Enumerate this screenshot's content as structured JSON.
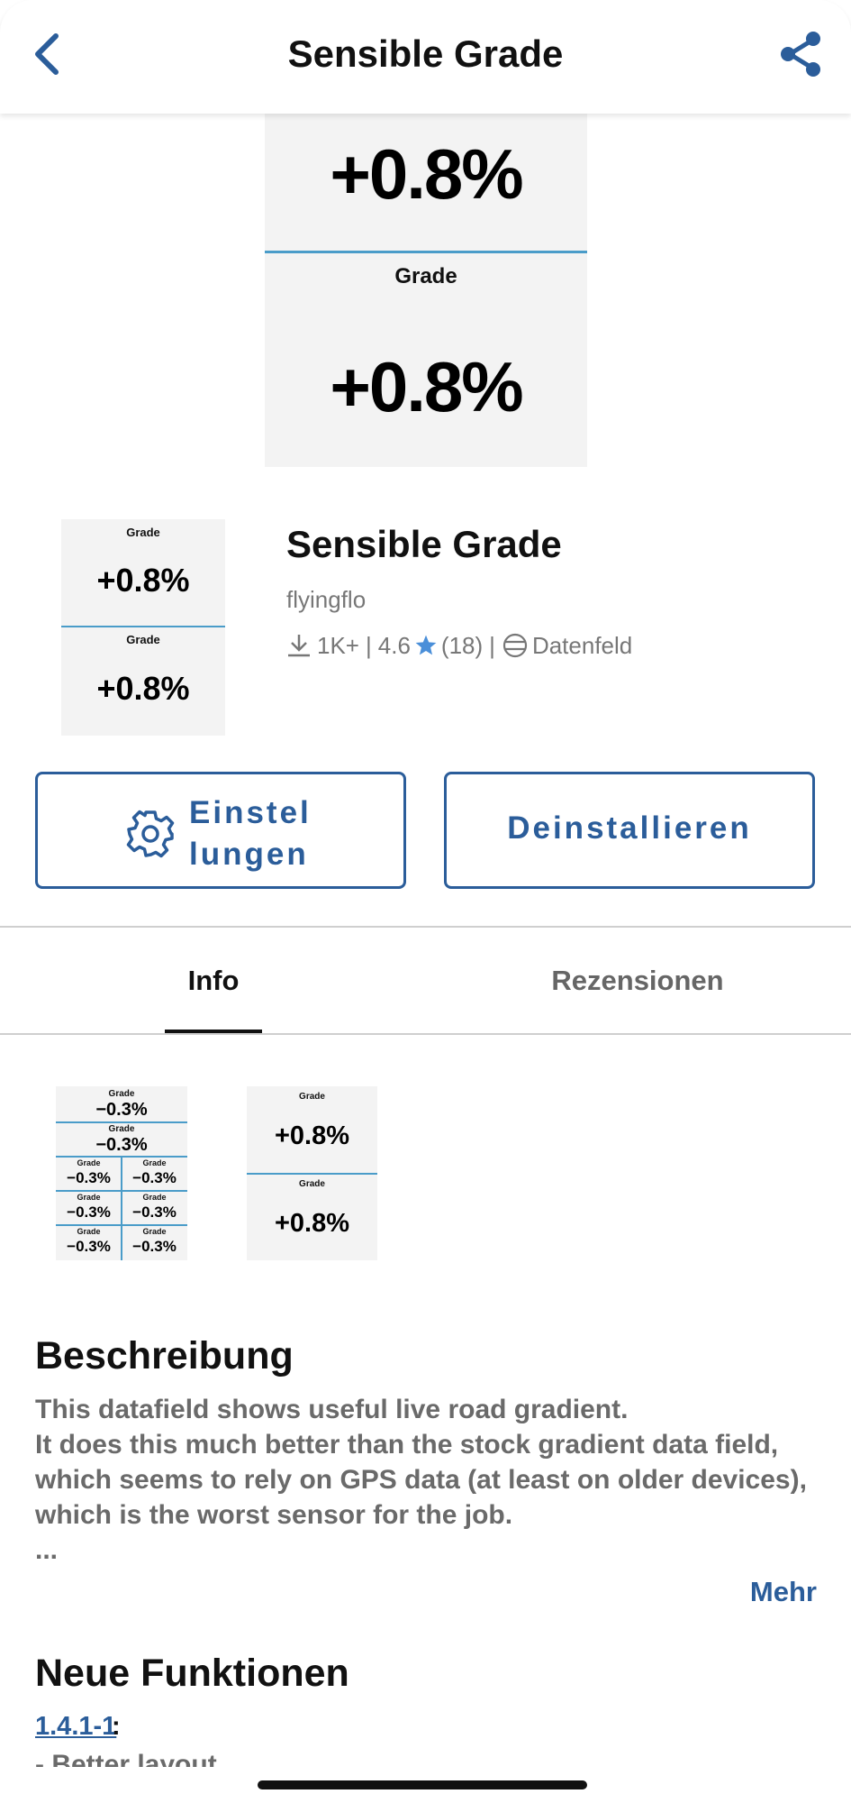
{
  "header": {
    "title": "Sensible Grade"
  },
  "hero_tile": {
    "value_top": "+0.8%",
    "label": "Grade",
    "value_bottom": "+0.8%"
  },
  "app_icon": {
    "label_top": "Grade",
    "value_top": "+0.8%",
    "label_bottom": "Grade",
    "value_bottom": "+0.8%"
  },
  "app": {
    "name": "Sensible Grade",
    "author": "flyingflo",
    "downloads": "1K+",
    "rating": "4.6",
    "review_count": "(18)",
    "separator": "|",
    "type": "Datenfeld"
  },
  "buttons": {
    "settings_line1": "Einstel",
    "settings_line2": "lungen",
    "uninstall": "Deinstallieren"
  },
  "tabs": [
    {
      "label": "Info",
      "active": true
    },
    {
      "label": "Rezensionen",
      "active": false
    }
  ],
  "screenshots": {
    "multi": {
      "label": "Grade",
      "value": "−0.3%"
    },
    "double": {
      "label_top": "Grade",
      "value_top": "+0.8%",
      "label_bottom": "Grade",
      "value_bottom": "+0.8%"
    }
  },
  "description": {
    "heading": "Beschreibung",
    "line1": "This datafield shows useful live road gradient.",
    "line2": "It does this much better than the stock gradient data field,",
    "line3": "which seems to rely on GPS data (at least on older devices),",
    "line4": "which is the worst sensor for the job.",
    "ellipsis": "...",
    "more": "Mehr"
  },
  "whats_new": {
    "heading": "Neue Funktionen",
    "version": "1.4.1-1",
    "colon": ":",
    "note": "- Better layout"
  },
  "colors": {
    "accent": "#2b5d9a",
    "divider_blue": "#4a9cc9",
    "star": "#4a8fd9"
  },
  "icons": [
    "back-chevron-icon",
    "share-icon",
    "download-icon",
    "star-icon",
    "datafield-icon",
    "gear-icon"
  ]
}
